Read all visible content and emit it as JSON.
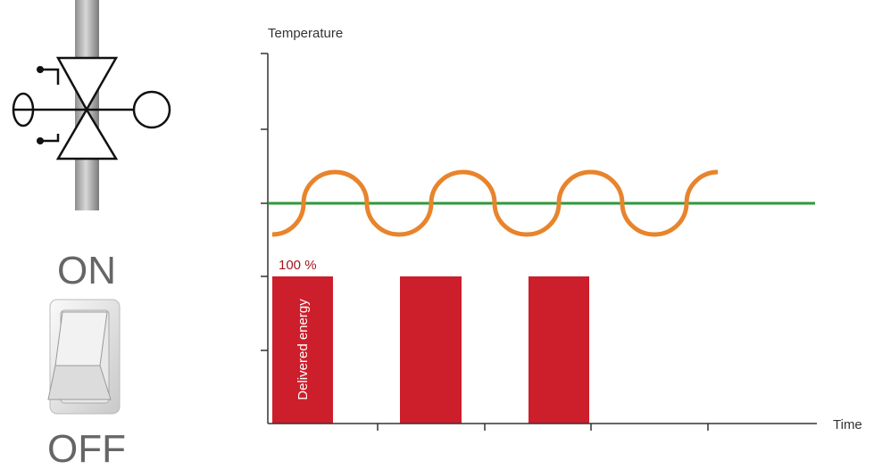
{
  "switch": {
    "on_label": "ON",
    "off_label": "OFF"
  },
  "graph": {
    "y_axis_label": "Temperature",
    "x_axis_label": "Time",
    "level_label": "100 %",
    "bar_text": "Delivered energy"
  }
}
